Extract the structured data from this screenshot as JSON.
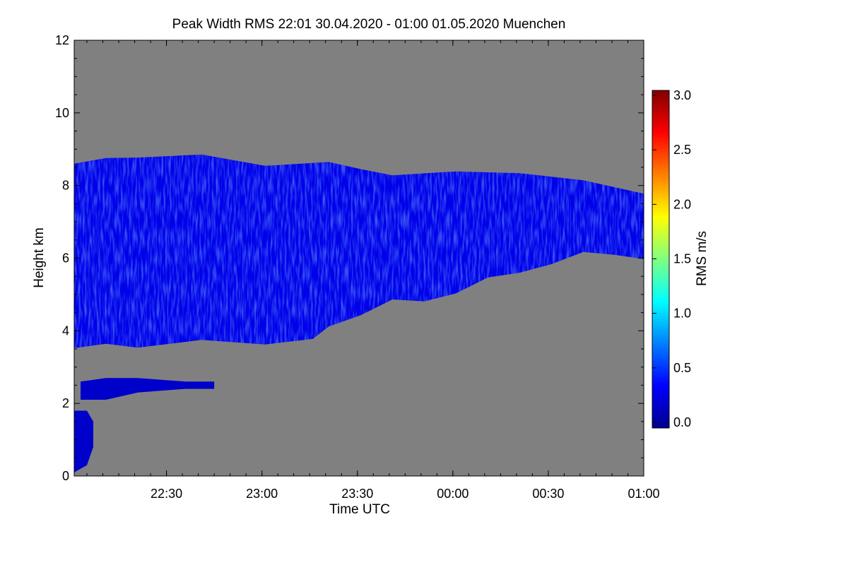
{
  "chart_data": {
    "type": "heatmap",
    "title": "Peak Width RMS   22:01 30.04.2020 - 01:00 01.05.2020 Muenchen",
    "xlabel": "Time UTC",
    "ylabel": "Height km",
    "xlim": [
      "22:01",
      "01:00"
    ],
    "ylim": [
      0,
      12
    ],
    "x_ticks": [
      "22:30",
      "23:00",
      "23:30",
      "00:00",
      "00:30",
      "01:00"
    ],
    "x_tick_minutes": [
      29,
      59,
      89,
      119,
      149,
      179
    ],
    "y_ticks": [
      0,
      2,
      4,
      6,
      8,
      10,
      12
    ],
    "background_color": "#808080",
    "colorbar": {
      "label": "RMS m/s",
      "range": [
        0.0,
        3.0
      ],
      "ticks": [
        "0.0",
        "0.5",
        "1.0",
        "1.5",
        "2.0",
        "2.5",
        "3.0"
      ],
      "colormap": "jet"
    },
    "layers": [
      {
        "name": "upper-cloud",
        "typical_rms": 0.3,
        "top_km": [
          [
            0,
            8.6
          ],
          [
            10,
            8.7
          ],
          [
            20,
            8.8
          ],
          [
            40,
            8.8
          ],
          [
            60,
            8.6
          ],
          [
            80,
            8.6
          ],
          [
            90,
            8.5
          ],
          [
            100,
            8.3
          ],
          [
            120,
            8.4
          ],
          [
            140,
            8.3
          ],
          [
            160,
            8.2
          ],
          [
            179,
            7.8
          ]
        ],
        "base_km": [
          [
            0,
            3.6
          ],
          [
            10,
            3.6
          ],
          [
            20,
            3.5
          ],
          [
            40,
            3.7
          ],
          [
            60,
            3.7
          ],
          [
            75,
            3.7
          ],
          [
            80,
            4.1
          ],
          [
            90,
            4.5
          ],
          [
            100,
            4.8
          ],
          [
            110,
            4.8
          ],
          [
            120,
            5.1
          ],
          [
            130,
            5.4
          ],
          [
            140,
            5.6
          ],
          [
            150,
            5.9
          ],
          [
            160,
            6.1
          ],
          [
            170,
            6.1
          ],
          [
            179,
            5.9
          ]
        ]
      },
      {
        "name": "low-layer",
        "typical_rms": 0.2,
        "top_km": [
          [
            2,
            2.6
          ],
          [
            10,
            2.7
          ],
          [
            20,
            2.7
          ],
          [
            35,
            2.6
          ],
          [
            44,
            2.6
          ]
        ],
        "base_km": [
          [
            2,
            2.1
          ],
          [
            10,
            2.1
          ],
          [
            20,
            2.3
          ],
          [
            35,
            2.4
          ],
          [
            44,
            2.4
          ]
        ]
      },
      {
        "name": "near-surface",
        "typical_rms": 0.2,
        "top_km": [
          [
            0,
            1.8
          ],
          [
            4,
            1.8
          ],
          [
            6,
            1.5
          ]
        ],
        "base_km": [
          [
            0,
            0.1
          ],
          [
            4,
            0.3
          ],
          [
            6,
            0.8
          ]
        ]
      }
    ]
  }
}
